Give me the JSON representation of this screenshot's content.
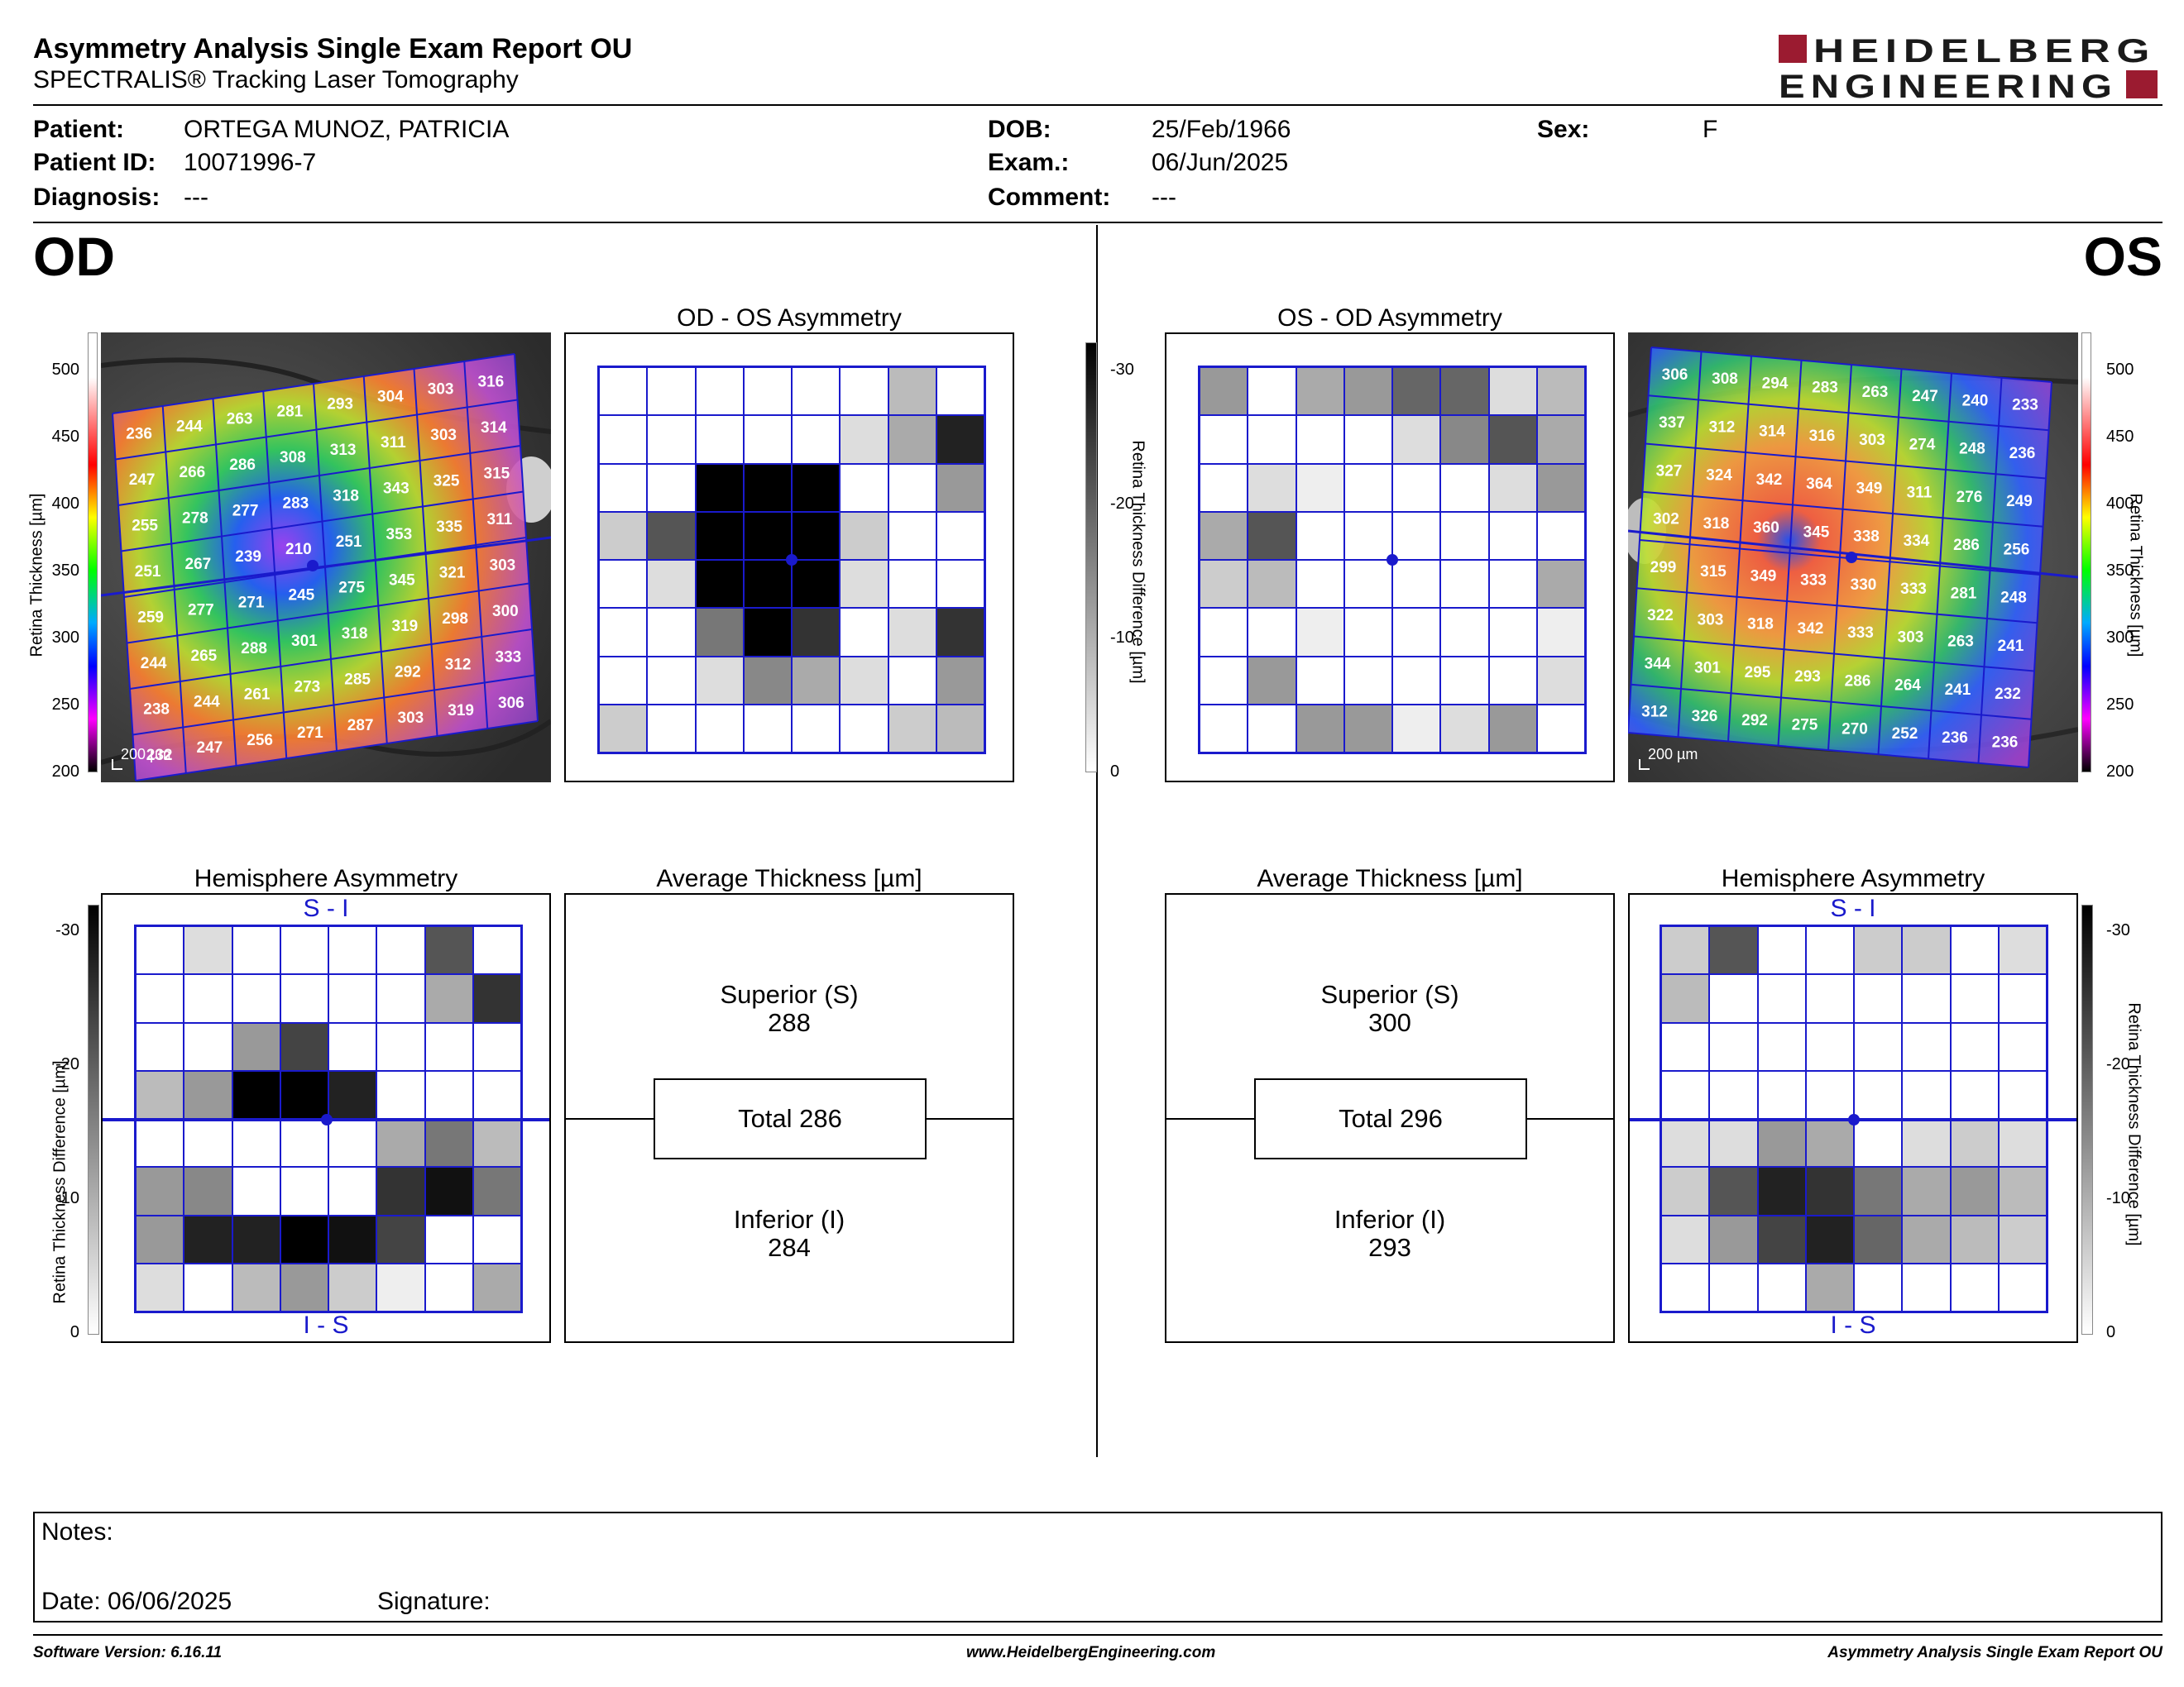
{
  "header": {
    "title": "Asymmetry Analysis Single Exam Report OU",
    "subtitle": "SPECTRALIS® Tracking Laser Tomography",
    "logo": {
      "line1": "HEIDELBERG",
      "line2": "ENGINEERING",
      "accent_color": "#9b1b30"
    }
  },
  "patient": {
    "patient_label": "Patient:",
    "patient_value": "ORTEGA MUNOZ, PATRICIA",
    "id_label": "Patient ID:",
    "id_value": "10071996-7",
    "diagnosis_label": "Diagnosis:",
    "diagnosis_value": "---",
    "dob_label": "DOB:",
    "dob_value": "25/Feb/1966",
    "exam_label": "Exam.:",
    "exam_value": "06/Jun/2025",
    "comment_label": "Comment:",
    "comment_value": "---",
    "sex_label": "Sex:",
    "sex_value": "F"
  },
  "od": {
    "eye_label": "OD",
    "asym_title": "OD - OS Asymmetry",
    "hemi_title": "Hemisphere Asymmetry",
    "avg_title": "Average Thickness [µm]",
    "superior_label": "Superior (S)",
    "superior_value": "288",
    "total_label": "Total 286",
    "inferior_label": "Inferior (I)",
    "inferior_value": "284",
    "scale_label": "200 µm",
    "thickness_grid": [
      [
        236,
        244,
        263,
        281,
        293,
        304,
        303,
        316
      ],
      [
        247,
        266,
        286,
        308,
        313,
        311,
        303,
        314
      ],
      [
        255,
        278,
        277,
        283,
        318,
        343,
        325,
        315
      ],
      [
        251,
        267,
        239,
        210,
        251,
        353,
        335,
        311
      ],
      [
        259,
        277,
        271,
        245,
        275,
        345,
        321,
        303
      ],
      [
        244,
        265,
        288,
        301,
        318,
        319,
        298,
        300
      ],
      [
        238,
        244,
        261,
        273,
        285,
        292,
        312,
        333
      ],
      [
        232,
        247,
        256,
        271,
        287,
        303,
        319,
        306
      ]
    ],
    "asym_grid": [
      [
        0,
        0,
        0,
        0,
        0,
        0,
        8,
        0
      ],
      [
        0,
        0,
        0,
        0,
        0,
        4,
        10,
        26
      ],
      [
        0,
        0,
        30,
        30,
        30,
        0,
        0,
        12
      ],
      [
        6,
        20,
        30,
        30,
        30,
        6,
        0,
        0
      ],
      [
        0,
        4,
        30,
        30,
        30,
        4,
        0,
        0
      ],
      [
        0,
        0,
        16,
        30,
        24,
        0,
        4,
        24
      ],
      [
        0,
        0,
        4,
        14,
        10,
        4,
        0,
        12
      ],
      [
        6,
        0,
        0,
        0,
        0,
        0,
        6,
        8
      ]
    ],
    "hemi_grid": [
      [
        0,
        4,
        0,
        0,
        0,
        0,
        20,
        0
      ],
      [
        0,
        0,
        0,
        0,
        0,
        0,
        10,
        24
      ],
      [
        0,
        0,
        12,
        22,
        0,
        0,
        0,
        0
      ],
      [
        8,
        12,
        30,
        30,
        26,
        0,
        0,
        0
      ],
      [
        0,
        0,
        0,
        0,
        0,
        10,
        16,
        8
      ],
      [
        12,
        14,
        0,
        0,
        0,
        24,
        28,
        16
      ],
      [
        12,
        26,
        26,
        30,
        28,
        22,
        0,
        0
      ],
      [
        4,
        0,
        8,
        12,
        6,
        2,
        0,
        10
      ]
    ],
    "hemi_top": "S - I",
    "hemi_bottom": "I - S"
  },
  "os": {
    "eye_label": "OS",
    "asym_title": "OS - OD Asymmetry",
    "hemi_title": "Hemisphere Asymmetry",
    "avg_title": "Average Thickness [µm]",
    "superior_label": "Superior (S)",
    "superior_value": "300",
    "total_label": "Total 296",
    "inferior_label": "Inferior (I)",
    "inferior_value": "293",
    "scale_label": "200 µm",
    "thickness_grid": [
      [
        306,
        308,
        294,
        283,
        263,
        247,
        240,
        233
      ],
      [
        337,
        312,
        314,
        316,
        303,
        274,
        248,
        236
      ],
      [
        327,
        324,
        342,
        364,
        349,
        311,
        276,
        249
      ],
      [
        302,
        318,
        360,
        345,
        338,
        334,
        286,
        256
      ],
      [
        299,
        315,
        349,
        333,
        330,
        333,
        281,
        248
      ],
      [
        322,
        303,
        318,
        342,
        333,
        303,
        263,
        241
      ],
      [
        344,
        301,
        295,
        293,
        286,
        264,
        241,
        232
      ],
      [
        312,
        326,
        292,
        275,
        270,
        252,
        236,
        236
      ]
    ],
    "asym_grid": [
      [
        12,
        0,
        10,
        12,
        18,
        18,
        4,
        8
      ],
      [
        0,
        0,
        0,
        0,
        4,
        14,
        20,
        10
      ],
      [
        0,
        4,
        2,
        0,
        0,
        0,
        4,
        12
      ],
      [
        10,
        20,
        0,
        0,
        0,
        0,
        0,
        0
      ],
      [
        6,
        8,
        0,
        0,
        0,
        0,
        0,
        10
      ],
      [
        0,
        0,
        2,
        0,
        0,
        0,
        0,
        2
      ],
      [
        0,
        12,
        0,
        0,
        0,
        0,
        0,
        4
      ],
      [
        0,
        0,
        12,
        12,
        2,
        4,
        12,
        0
      ]
    ],
    "hemi_grid": [
      [
        6,
        20,
        0,
        0,
        6,
        6,
        0,
        4
      ],
      [
        8,
        0,
        0,
        0,
        0,
        0,
        0,
        0
      ],
      [
        0,
        0,
        0,
        0,
        0,
        0,
        0,
        0
      ],
      [
        0,
        0,
        0,
        0,
        0,
        0,
        0,
        0
      ],
      [
        4,
        4,
        12,
        10,
        0,
        4,
        6,
        4
      ],
      [
        6,
        20,
        26,
        24,
        16,
        10,
        12,
        8
      ],
      [
        4,
        12,
        22,
        26,
        18,
        10,
        8,
        6
      ],
      [
        0,
        0,
        0,
        10,
        0,
        0,
        0,
        0
      ]
    ],
    "hemi_top": "S - I",
    "hemi_bottom": "I - S"
  },
  "axes": {
    "thickness_title": "Retina Thickness [µm]",
    "thickness_ticks": [
      "500",
      "450",
      "400",
      "350",
      "300",
      "250",
      "200"
    ],
    "diff_title": "Retina Thickness Difference [µm]",
    "diff_ticks": [
      "-30",
      "-20",
      "-10",
      "0"
    ]
  },
  "notes": {
    "notes_label": "Notes:",
    "date_label": "Date: 06/06/2025",
    "signature_label": "Signature:"
  },
  "footer": {
    "version": "Software Version: 6.16.11",
    "website": "www.HeidelbergEngineering.com",
    "report_name": "Asymmetry Analysis Single Exam Report OU"
  }
}
